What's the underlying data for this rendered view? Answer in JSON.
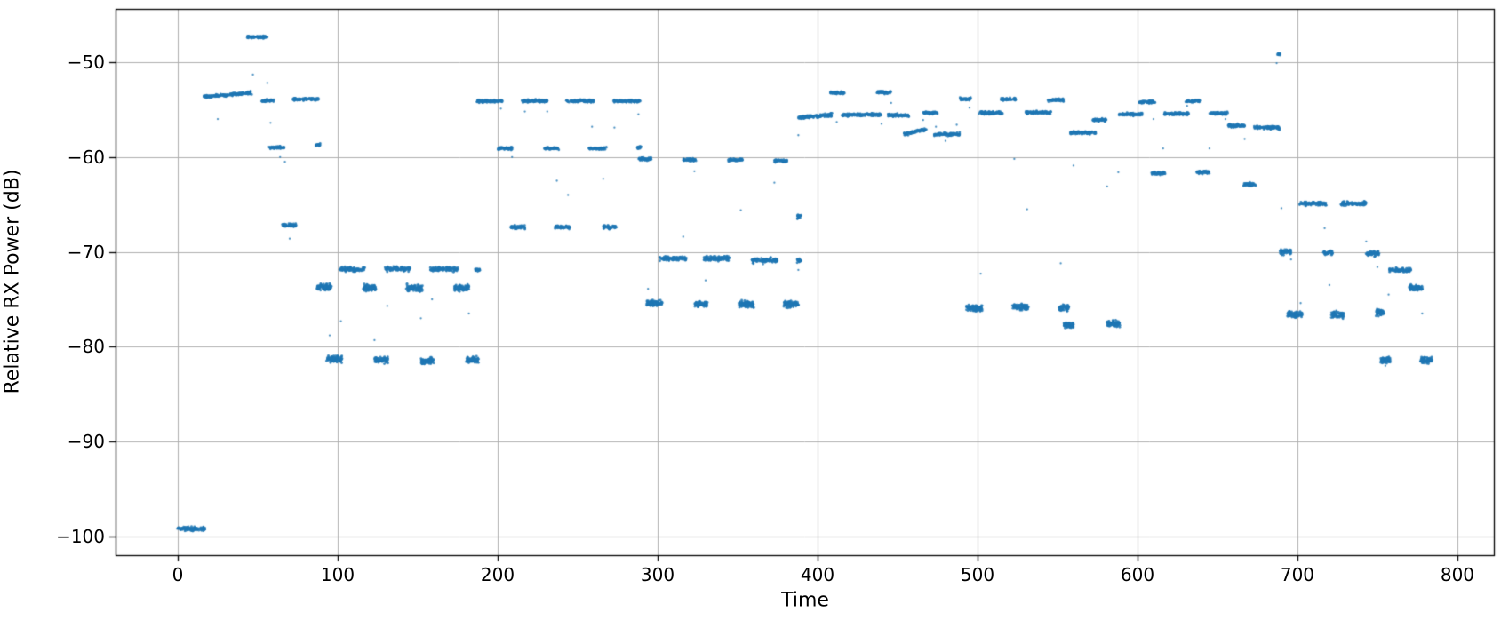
{
  "figure": {
    "background": "#ffffff"
  },
  "chart_data": {
    "type": "scatter",
    "title": "",
    "xlabel": "Time",
    "ylabel": "Relative RX Power (dB)",
    "xlim": [
      -38.9,
      822.8
    ],
    "ylim": [
      -101.97,
      -44.38
    ],
    "x_ticks": [
      0,
      100,
      200,
      300,
      400,
      500,
      600,
      700,
      800
    ],
    "y_ticks": [
      -50,
      -60,
      -70,
      -80,
      -90,
      -100
    ],
    "grid": true,
    "legend": "none",
    "marker_color": "#1f77b4",
    "grid_color": "#b0b0b0",
    "spine_color": "#000000",
    "tick_color": "#000000",
    "segments_format": "[t_start, t_end, power_dB, spread_px, optional_power_end_dB]",
    "segments": [
      [
        0,
        17,
        -99.2,
        1.5
      ],
      [
        16,
        46,
        -53.65,
        1.0,
        -53.25
      ],
      [
        43.5,
        56,
        -47.35,
        1.1
      ],
      [
        52,
        60,
        -54.05,
        1.0
      ],
      [
        57,
        67,
        -59.0,
        1.0
      ],
      [
        65,
        74,
        -67.2,
        1.3
      ],
      [
        72,
        88,
        -53.9,
        1.0
      ],
      [
        86,
        89,
        -58.7,
        0.9
      ],
      [
        87,
        96,
        -73.7,
        2.3
      ],
      [
        93,
        103,
        -81.3,
        2.3
      ],
      [
        101,
        117,
        -71.85,
        1.7
      ],
      [
        116,
        124,
        -73.8,
        2.3
      ],
      [
        123,
        132,
        -81.4,
        2.3
      ],
      [
        129,
        145,
        -71.8,
        1.7
      ],
      [
        143,
        153,
        -73.8,
        2.3
      ],
      [
        152,
        160,
        -81.5,
        2.3
      ],
      [
        158,
        175,
        -71.8,
        1.7
      ],
      [
        173,
        182,
        -73.8,
        2.3
      ],
      [
        180,
        188,
        -81.4,
        2.3
      ],
      [
        186,
        189,
        -71.9,
        1.4
      ],
      [
        187,
        203,
        -54.1,
        1.0
      ],
      [
        200,
        209,
        -59.1,
        1.0
      ],
      [
        208,
        217,
        -67.4,
        1.4
      ],
      [
        215,
        231,
        -54.1,
        1.0
      ],
      [
        229,
        238,
        -59.1,
        1.0
      ],
      [
        236,
        245,
        -67.4,
        1.4
      ],
      [
        243,
        260,
        -54.1,
        1.0
      ],
      [
        257,
        268,
        -59.1,
        1.0
      ],
      [
        266,
        274,
        -67.4,
        1.4
      ],
      [
        272,
        289,
        -54.1,
        1.0
      ],
      [
        287,
        290,
        -59.0,
        0.9
      ],
      [
        288,
        296,
        -60.2,
        1.2
      ],
      [
        293,
        303,
        -75.4,
        2.3
      ],
      [
        301,
        318,
        -70.7,
        1.8
      ],
      [
        316,
        324,
        -60.3,
        1.1
      ],
      [
        323,
        331,
        -75.5,
        2.3
      ],
      [
        329,
        345,
        -70.7,
        1.8
      ],
      [
        344,
        353,
        -60.3,
        1.1
      ],
      [
        351,
        360,
        -75.5,
        2.3
      ],
      [
        359,
        375,
        -70.9,
        1.8
      ],
      [
        373,
        381,
        -60.4,
        1.1
      ],
      [
        379,
        388,
        -75.5,
        2.3
      ],
      [
        387.3,
        389.7,
        -70.9,
        1.6
      ],
      [
        387.3,
        389.7,
        -66.3,
        1.6
      ],
      [
        388,
        409,
        -55.85,
        1.2,
        -55.55
      ],
      [
        408,
        417,
        -53.25,
        1.0
      ],
      [
        415,
        440,
        -55.55,
        1.1
      ],
      [
        437,
        446,
        -53.2,
        1.0
      ],
      [
        444,
        457,
        -55.6,
        1.1
      ],
      [
        454,
        468,
        -57.6,
        1.1,
        -57.1
      ],
      [
        466,
        475,
        -55.35,
        1.0
      ],
      [
        473,
        489,
        -57.6,
        1.2
      ],
      [
        489,
        496,
        -53.9,
        1.0
      ],
      [
        493,
        503,
        -75.95,
        2.3
      ],
      [
        501,
        517,
        -55.35,
        1.1
      ],
      [
        515,
        524,
        -53.9,
        1.0
      ],
      [
        522,
        532,
        -75.85,
        2.3
      ],
      [
        530,
        546,
        -55.3,
        1.1
      ],
      [
        544,
        554,
        -54.0,
        1.0
      ],
      [
        551,
        557,
        -75.9,
        2.2
      ],
      [
        554,
        560,
        -77.7,
        2.2
      ],
      [
        558,
        574,
        -57.45,
        1.2
      ],
      [
        572,
        581,
        -56.1,
        1.1
      ],
      [
        581,
        589,
        -77.6,
        2.3
      ],
      [
        588,
        603,
        -55.5,
        1.1
      ],
      [
        601,
        611,
        -54.2,
        1.0
      ],
      [
        609,
        617,
        -61.7,
        1.3
      ],
      [
        616,
        632,
        -55.45,
        1.1
      ],
      [
        630,
        639,
        -54.1,
        1.0
      ],
      [
        637,
        645,
        -61.6,
        1.3
      ],
      [
        645,
        657,
        -55.4,
        1.1
      ],
      [
        656,
        667,
        -56.7,
        1.2
      ],
      [
        666,
        674,
        -62.9,
        1.3
      ],
      [
        673,
        689,
        -56.85,
        1.3,
        -56.95
      ],
      [
        687.6,
        689.4,
        -49.15,
        0.9
      ],
      [
        689,
        696,
        -70.0,
        1.9
      ],
      [
        694,
        703,
        -76.6,
        2.3
      ],
      [
        701,
        718,
        -64.9,
        1.5
      ],
      [
        716,
        722,
        -70.1,
        1.9
      ],
      [
        721,
        729,
        -76.6,
        2.3
      ],
      [
        727,
        743,
        -64.9,
        1.5
      ],
      [
        743,
        751,
        -70.2,
        1.9
      ],
      [
        749,
        754,
        -76.4,
        2.2
      ],
      [
        752,
        758,
        -81.4,
        2.3
      ],
      [
        757,
        771,
        -71.9,
        1.7
      ],
      [
        770,
        778,
        -73.8,
        2.2
      ],
      [
        777,
        784,
        -81.4,
        2.3
      ]
    ],
    "outliers_format": "[t, power_dB]",
    "outliers": [
      [
        25,
        -56.0
      ],
      [
        47,
        -51.3
      ],
      [
        56,
        -52.2
      ],
      [
        58,
        -56.4
      ],
      [
        64,
        -60.0
      ],
      [
        67,
        -60.5
      ],
      [
        70,
        -68.6
      ],
      [
        88,
        -58.8
      ],
      [
        95,
        -78.8
      ],
      [
        102,
        -77.3
      ],
      [
        123,
        -79.3
      ],
      [
        131,
        -75.7
      ],
      [
        152,
        -77.0
      ],
      [
        159,
        -75.0
      ],
      [
        182,
        -76.5
      ],
      [
        202,
        -54.9
      ],
      [
        209,
        -60.0
      ],
      [
        217,
        -55.2
      ],
      [
        231,
        -55.2
      ],
      [
        237,
        -62.5
      ],
      [
        244,
        -64.0
      ],
      [
        259,
        -56.8
      ],
      [
        266,
        -62.3
      ],
      [
        268,
        -58.9
      ],
      [
        273,
        -56.9
      ],
      [
        288,
        -55.5
      ],
      [
        294,
        -73.9
      ],
      [
        316,
        -68.4
      ],
      [
        323,
        -61.5
      ],
      [
        330,
        -73.0
      ],
      [
        352,
        -65.6
      ],
      [
        366,
        -71.3
      ],
      [
        373,
        -62.7
      ],
      [
        388,
        -57.7
      ],
      [
        388,
        -71.9
      ],
      [
        412,
        -56.3
      ],
      [
        440,
        -56.5
      ],
      [
        446,
        -54.3
      ],
      [
        466,
        -56.1
      ],
      [
        474,
        -56.8
      ],
      [
        480,
        -58.3
      ],
      [
        487,
        -56.6
      ],
      [
        495,
        -54.8
      ],
      [
        502,
        -72.3
      ],
      [
        523,
        -60.2
      ],
      [
        531,
        -65.5
      ],
      [
        552,
        -71.2
      ],
      [
        560,
        -60.9
      ],
      [
        581,
        -63.1
      ],
      [
        588,
        -61.6
      ],
      [
        610,
        -56.0
      ],
      [
        616,
        -59.1
      ],
      [
        631,
        -54.6
      ],
      [
        645,
        -59.1
      ],
      [
        655,
        -56.0
      ],
      [
        667,
        -58.1
      ],
      [
        687,
        -50.1
      ],
      [
        690,
        -65.4
      ],
      [
        696,
        -70.8
      ],
      [
        702,
        -75.4
      ],
      [
        717,
        -67.5
      ],
      [
        720,
        -73.5
      ],
      [
        743,
        -68.9
      ],
      [
        750,
        -71.6
      ],
      [
        755,
        -82.0
      ],
      [
        757,
        -74.5
      ],
      [
        778,
        -76.5
      ]
    ]
  }
}
